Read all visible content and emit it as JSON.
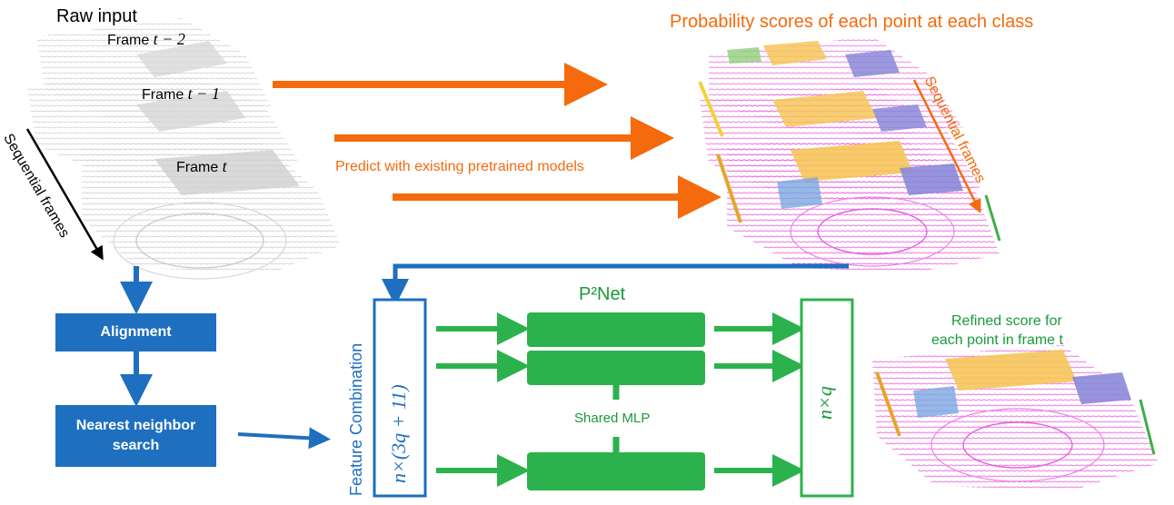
{
  "raw_input_label": "Raw input",
  "frames": [
    {
      "label": "Frame ",
      "var": "t − 2"
    },
    {
      "label": "Frame ",
      "var": "t − 1"
    },
    {
      "label": "Frame ",
      "var": "t"
    }
  ],
  "sequential_frames_left": "Sequential frames",
  "sequential_frames_right": "Sequential frames",
  "probability_title": "Probability scores of each point at each class",
  "predict_label": "Predict with existing pretrained models",
  "alignment_label": "Alignment",
  "nn_search_label": "Nearest neighbor search",
  "feature_combination_label": "Feature Combination",
  "input_dim_label": "n×(3q + 11)",
  "network_name": "P²Net",
  "shared_mlp_label": "Shared MLP",
  "output_dim_label": "n×q",
  "refined_label_line1": "Refined score for",
  "refined_label_line2": "each point in frame t",
  "colors": {
    "orange": "#f46a0c",
    "blue": "#1e6fbf",
    "green": "#2bb24c",
    "text_orange": "#f46a0c",
    "text_green": "#1a9a3a"
  }
}
